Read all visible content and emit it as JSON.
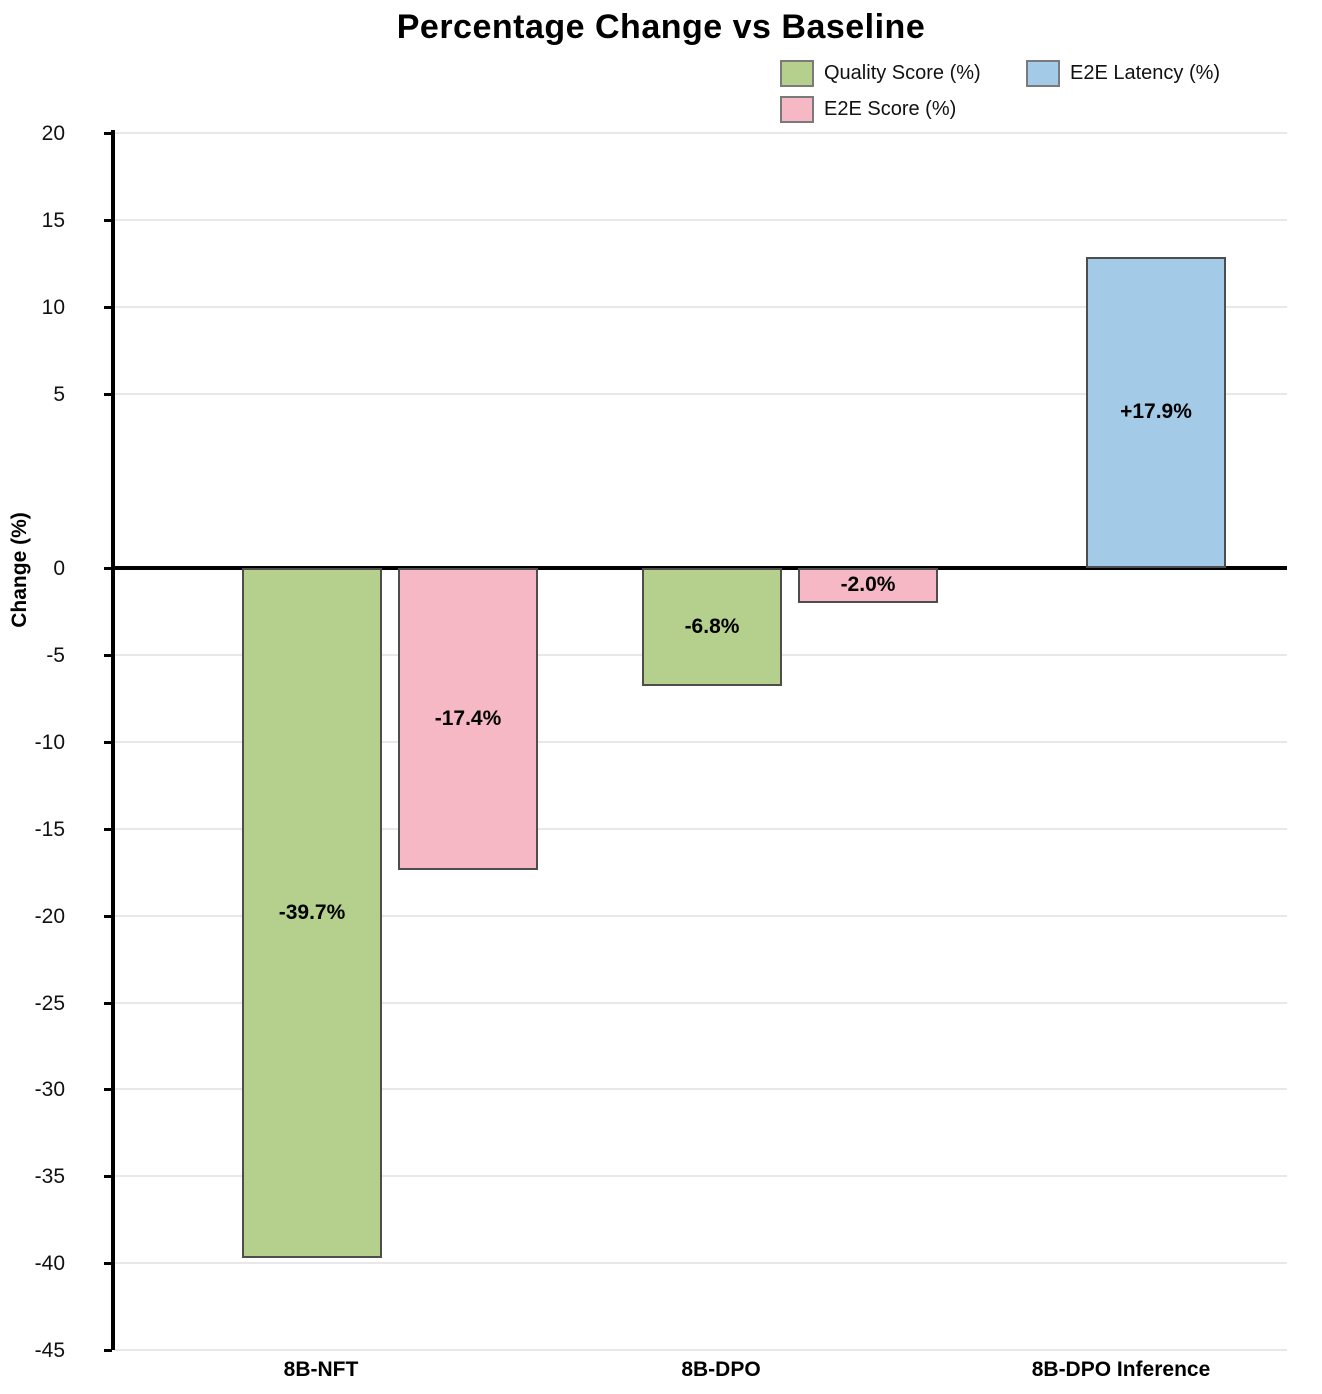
{
  "chart_data": {
    "type": "bar",
    "title": "Percentage Change vs Baseline",
    "xlabel": "",
    "ylabel": "Change (%)",
    "categories": [
      "8B-NFT",
      "8B-DPO",
      "8B-DPO Inference"
    ],
    "series": [
      {
        "name": "Quality Score (%)",
        "color": "#b5d08c",
        "values": [
          -39.7,
          -6.8,
          null
        ]
      },
      {
        "name": "E2E Score (%)",
        "color": "#f5b8c4",
        "values": [
          -17.4,
          -2.0,
          null
        ]
      },
      {
        "name": "E2E Latency (%)",
        "color": "#a3cbe8",
        "values": [
          null,
          null,
          17.9
        ]
      }
    ],
    "bar_labels": {
      "8B-NFT": {
        "Quality Score (%)": "-39.7%",
        "E2E Score (%)": "-17.4%"
      },
      "8B-DPO": {
        "Quality Score (%)": "-6.8%",
        "E2E Score (%)": "-2.0%"
      },
      "8B-DPO Inference": {
        "E2E Latency (%)": "+17.9%"
      }
    },
    "y_ticks": [
      20,
      15,
      10,
      5,
      0,
      -5,
      -10,
      -15,
      -20,
      -25,
      -30,
      -35,
      -40,
      -45
    ],
    "ylim": [
      -45,
      20
    ],
    "grid": true,
    "legend_position": "top-right",
    "colors": {
      "bar_border": "#4d4d4d",
      "gridline": "#e8e8e8",
      "axis": "#000000"
    }
  }
}
